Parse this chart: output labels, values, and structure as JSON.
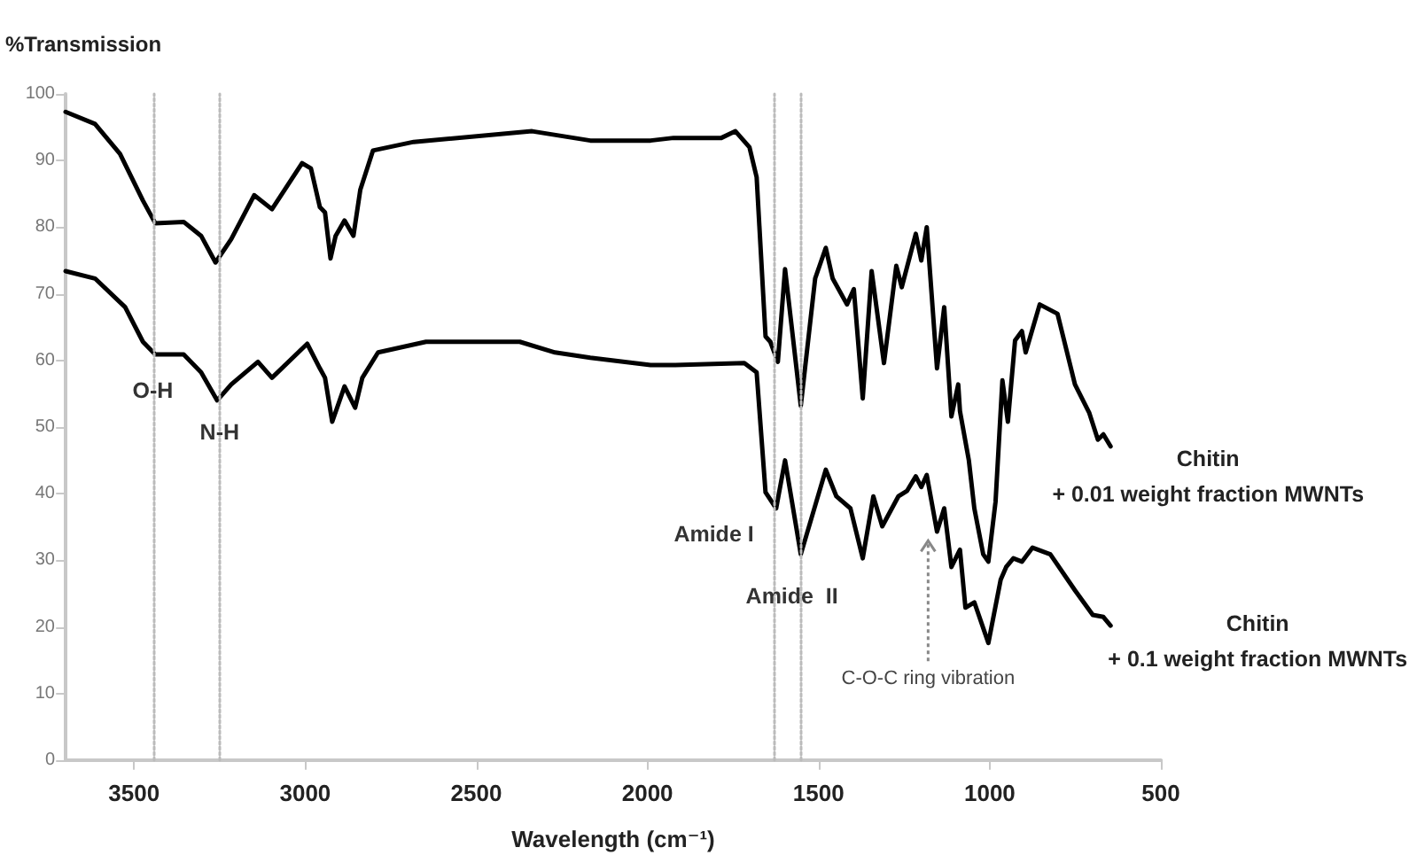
{
  "chart_data": {
    "type": "line",
    "ylabel": "%Transmission",
    "xlabel": "Wavelength (cm⁻¹)",
    "xlim": [
      3700,
      500
    ],
    "xticks": [
      3500,
      3000,
      2500,
      2000,
      1500,
      1000,
      500
    ],
    "ylim": [
      0,
      100
    ],
    "yticks": [
      0,
      10,
      20,
      30,
      40,
      50,
      60,
      70,
      80,
      90,
      100
    ],
    "marker": "none",
    "series": [
      {
        "name": "Chitin\n+ 0.01 weight fraction MWNTs",
        "color": "#000000",
        "x": [
          3700,
          3614,
          3541,
          3474,
          3438,
          3355,
          3304,
          3262,
          3216,
          3149,
          3097,
          3009,
          2983,
          2957,
          2942,
          2926,
          2911,
          2885,
          2859,
          2839,
          2802,
          2683,
          2337,
          2167,
          1991,
          1924,
          1784,
          1743,
          1702,
          1681,
          1655,
          1641,
          1619,
          1598,
          1552,
          1510,
          1479,
          1459,
          1417,
          1397,
          1371,
          1345,
          1309,
          1273,
          1257,
          1216,
          1200,
          1184,
          1154,
          1133,
          1112,
          1092,
          1087,
          1061,
          1045,
          1019,
          1004,
          983,
          963,
          947,
          926,
          906,
          895,
          854,
          802,
          751,
          709,
          684,
          668,
          647
        ],
        "values": [
          97.3,
          95.5,
          91,
          84,
          80.6,
          80.8,
          78.7,
          74.7,
          78.2,
          84.8,
          82.7,
          89.6,
          88.8,
          83,
          82.2,
          75.3,
          78.7,
          81,
          78.7,
          85.6,
          91.5,
          92.8,
          94.4,
          93,
          93,
          93.4,
          93.4,
          94.4,
          92,
          87.5,
          63.6,
          62.8,
          59.8,
          73.7,
          53.2,
          72.3,
          76.9,
          72.3,
          68.4,
          70.7,
          54.3,
          73.4,
          59.6,
          74.2,
          71,
          79,
          75,
          80,
          58.8,
          68,
          51.6,
          56.4,
          52.4,
          45,
          37.8,
          30.9,
          29.8,
          38.8,
          57,
          50.8,
          63,
          64.4,
          61.2,
          68.4,
          67,
          56.4,
          52.1,
          48.1,
          48.9,
          47.1
        ]
      },
      {
        "name": "Chitin\n+ 0.1 weight fraction MWNTs",
        "color": "#000000",
        "x": [
          3700,
          3614,
          3526,
          3474,
          3438,
          3355,
          3304,
          3257,
          3216,
          3138,
          3097,
          2994,
          2957,
          2942,
          2921,
          2885,
          2854,
          2833,
          2787,
          2647,
          2373,
          2270,
          2167,
          1991,
          1924,
          1717,
          1681,
          1655,
          1624,
          1598,
          1552,
          1479,
          1448,
          1407,
          1371,
          1340,
          1314,
          1267,
          1242,
          1216,
          1200,
          1184,
          1154,
          1133,
          1112,
          1087,
          1071,
          1045,
          1004,
          968,
          952,
          931,
          906,
          875,
          823,
          751,
          699,
          668,
          647
        ],
        "values": [
          73.4,
          72.3,
          68,
          62.8,
          60.9,
          60.9,
          58.2,
          54,
          56.4,
          59.8,
          57.4,
          62.5,
          58.8,
          57.4,
          50.8,
          56.1,
          52.9,
          57.4,
          61.2,
          62.8,
          62.8,
          61.2,
          60.4,
          59.3,
          59.3,
          59.6,
          58.2,
          40.2,
          37.8,
          45,
          30.9,
          43.6,
          39.6,
          37.8,
          30.3,
          39.6,
          35.1,
          39.6,
          40.4,
          42.6,
          41,
          42.8,
          34.3,
          37.8,
          29,
          31.6,
          22.9,
          23.7,
          17.6,
          27.1,
          29,
          30.3,
          29.8,
          31.9,
          30.9,
          25.5,
          21.8,
          21.5,
          20.2
        ]
      }
    ],
    "ref_lines": [
      {
        "axis": "x",
        "value": 3440,
        "color": "#bbbbbb",
        "line_style": "dotted"
      },
      {
        "axis": "x",
        "value": 3250,
        "color": "#bbbbbb",
        "line_style": "dotted"
      },
      {
        "axis": "x",
        "value": 1630,
        "color": "#bbbbbb",
        "line_style": "dotted"
      },
      {
        "axis": "x",
        "value": 1552,
        "color": "#bbbbbb",
        "line_style": "dotted"
      }
    ],
    "annotations": [
      {
        "text": "O-H",
        "x": 3440,
        "y": 61
      },
      {
        "text": "N-H",
        "x": 3250,
        "y": 54
      },
      {
        "text": "Amide I",
        "x": 1630,
        "y": 40
      },
      {
        "text": "Amide  II",
        "x": 1552,
        "y": 31
      },
      {
        "text": "C-O-C ring vibration",
        "x": 1180,
        "y": 34
      }
    ]
  }
}
